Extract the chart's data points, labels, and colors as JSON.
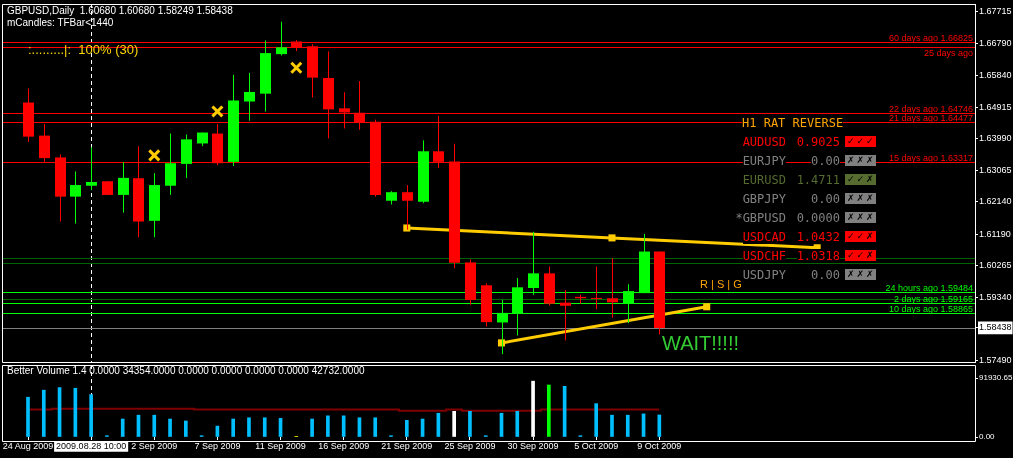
{
  "chart_data": [
    {
      "type": "candlestick",
      "title": "GBPUSD,Daily  1.60680 1.60680 1.58249 1.58438",
      "subtitle": "mCandles: TFBar<1440",
      "categories": [
        "24 Aug 2009",
        null,
        null,
        null,
        "2009.08.28 10:00",
        null,
        null,
        null,
        "2 Sep 2009",
        null,
        null,
        null,
        "7 Sep 2009",
        null,
        null,
        null,
        "11 Sep 2009",
        null,
        null,
        null,
        "16 Sep 2009",
        null,
        null,
        null,
        "21 Sep 2009",
        null,
        null,
        null,
        "25 Sep 2009",
        null,
        null,
        null,
        "30 Sep 2009",
        null,
        null,
        null,
        "5 Oct 2009",
        null,
        null,
        null,
        "9 Oct 2009",
        null,
        null,
        null,
        null,
        null,
        null,
        null,
        null,
        null,
        null,
        null,
        null,
        null,
        null,
        null,
        null,
        null,
        null,
        null,
        null
      ],
      "ohlc": [
        [
          1.6505,
          1.6546,
          1.6389,
          1.6405
        ],
        [
          1.6408,
          1.6442,
          1.6328,
          1.6342
        ],
        [
          1.6344,
          1.6353,
          1.6156,
          1.6229
        ],
        [
          1.6229,
          1.6303,
          1.615,
          1.6263
        ],
        [
          1.6261,
          1.6374,
          1.6248,
          1.6272
        ],
        [
          1.6274,
          1.6274,
          1.6234,
          1.6234
        ],
        [
          1.6234,
          1.633,
          1.6182,
          1.6284
        ],
        [
          1.6283,
          1.6377,
          1.611,
          1.6156
        ],
        [
          1.6158,
          1.6298,
          1.611,
          1.6263
        ],
        [
          1.6261,
          1.6414,
          1.6234,
          1.6327
        ],
        [
          1.6325,
          1.6411,
          1.6284,
          1.6397
        ],
        [
          1.6385,
          1.6417,
          1.6377,
          1.6417
        ],
        [
          1.6414,
          1.6442,
          1.6321,
          1.6327
        ],
        [
          1.6331,
          1.6586,
          1.6319,
          1.6511
        ],
        [
          1.6508,
          1.6592,
          1.6452,
          1.6536
        ],
        [
          1.6531,
          1.6687,
          1.6479,
          1.665
        ],
        [
          1.6647,
          1.6742,
          1.6643,
          1.6667
        ],
        [
          1.6684,
          1.6688,
          1.6656,
          1.6665
        ],
        [
          1.667,
          1.6676,
          1.652,
          1.6578
        ],
        [
          1.6577,
          1.6655,
          1.64,
          1.6485
        ],
        [
          1.6488,
          1.6535,
          1.6429,
          1.6476
        ],
        [
          1.6475,
          1.6568,
          1.6425,
          1.6447
        ],
        [
          1.6449,
          1.6455,
          1.6229,
          1.6234
        ],
        [
          1.6217,
          1.6245,
          1.6206,
          1.6242
        ],
        [
          1.6242,
          1.6263,
          1.6132,
          1.6217
        ],
        [
          1.6214,
          1.6394,
          1.621,
          1.6362
        ],
        [
          1.6362,
          1.6466,
          1.6313,
          1.6331
        ],
        [
          1.6332,
          1.6384,
          1.6019,
          1.6035
        ],
        [
          1.6036,
          1.6045,
          1.5912,
          1.5926
        ],
        [
          1.5969,
          1.5975,
          1.5848,
          1.5861
        ],
        [
          1.586,
          1.5926,
          1.5767,
          1.5888
        ],
        [
          1.5886,
          1.599,
          1.5822,
          1.5963
        ],
        [
          1.5961,
          1.6126,
          1.5941,
          1.6004
        ],
        [
          1.6004,
          1.6024,
          1.5909,
          1.5915
        ],
        [
          1.5918,
          1.5955,
          1.5807,
          1.5909
        ],
        [
          1.5935,
          1.5941,
          1.5915,
          1.5931
        ],
        [
          1.5932,
          1.6024,
          1.5899,
          1.5929
        ],
        [
          1.5931,
          1.6048,
          1.5874,
          1.5919
        ],
        [
          1.5915,
          1.5972,
          1.5858,
          1.5952
        ],
        [
          1.5946,
          1.612,
          1.5946,
          1.6068
        ],
        [
          1.6068,
          1.6068,
          1.58249,
          1.58438
        ],
        null,
        null,
        null,
        null,
        null,
        null,
        null,
        null,
        null,
        null,
        null,
        null,
        null,
        null,
        null,
        null,
        null,
        null,
        null,
        null
      ],
      "colors": [
        "#ff0000",
        "#ff0000",
        "#ff0000",
        "#00ff00",
        "#00ff00",
        "#ff0000",
        "#00ff00",
        "#ff0000",
        "#00ff00",
        "#00ff00",
        "#00ff00",
        "#00ff00",
        "#ff0000",
        "#00ff00",
        "#00ff00",
        "#00ff00",
        "#00ff00",
        "#ff0000",
        "#ff0000",
        "#ff0000",
        "#ff0000",
        "#ff0000",
        "#ff0000",
        "#00ff00",
        "#ff0000",
        "#00ff00",
        "#ff0000",
        "#ff0000",
        "#ff0000",
        "#ff0000",
        "#00ff00",
        "#00ff00",
        "#00ff00",
        "#ff0000",
        "#ff0000",
        "#ff0000",
        "#ff0000",
        "#ff0000",
        "#00ff00",
        "#00ff00",
        "#ff0000",
        null,
        null,
        null,
        null,
        null,
        null,
        null,
        null,
        null,
        null,
        null,
        null,
        null,
        null,
        null,
        null,
        null,
        null,
        null,
        null
      ],
      "ylim": [
        1.5744,
        1.6794
      ],
      "yticks": [
        1.67715,
        {
          "value": 1.6679,
          "label": "1.66790"
        },
        {
          "value": 1.6584,
          "label": "1.65840"
        },
        1.64915,
        {
          "value": 1.6399,
          "label": "1.63990"
        },
        1.63065,
        {
          "value": 1.6214,
          "label": "1.62140"
        },
        {
          "value": 1.6119,
          "label": "1.61190"
        },
        1.60265,
        {
          "value": 1.5934,
          "label": "1.59340"
        },
        1.58438,
        {
          "value": 1.5749,
          "label": "1.57490"
        }
      ],
      "tick_labels": "y",
      "ref_lines": [
        {
          "axis": "x",
          "value": "2009.08.28 10:00",
          "color": "#ffffff",
          "line_style": "dashed"
        },
        {
          "axis": "y",
          "value": 1.66825,
          "label": "60 days ago 1.66825",
          "color": "#ff0000"
        },
        {
          "axis": "y",
          "value": 1.6669,
          "label": "25 days ago",
          "color": "#ff0000"
        },
        {
          "axis": "y",
          "value": 1.64746,
          "label": "22 days ago 1.64746",
          "color": "#ff0000"
        },
        {
          "axis": "y",
          "value": 1.64477,
          "label": "21 days ago 1.64477",
          "color": "#ff0000"
        },
        {
          "axis": "y",
          "value": 1.63317,
          "label": "15 days ago 1.63317",
          "color": "#ff0000"
        },
        {
          "axis": "y",
          "value": 1.6048,
          "color": "#006400"
        },
        {
          "axis": "y",
          "value": 1.6035,
          "color": "#006400"
        },
        {
          "axis": "y",
          "value": 1.593,
          "color": "#006400"
        },
        {
          "axis": "y",
          "value": 1.59484,
          "label": "24 hours ago 1.59484",
          "color": "#00ff00"
        },
        {
          "axis": "y",
          "value": 1.59165,
          "label": "2 days ago 1.59165",
          "color": "#00ff00"
        },
        {
          "axis": "y",
          "value": 1.58865,
          "label": "10 days ago 1.58865",
          "color": "#00ff00"
        },
        {
          "axis": "y",
          "value": 1.58438,
          "color": "#808080"
        }
      ],
      "series": [
        {
          "type": "line",
          "color": "#ffcc00",
          "marker": "square",
          "values": [
            null,
            null,
            null,
            null,
            null,
            null,
            null,
            null,
            null,
            null,
            null,
            null,
            null,
            null,
            null,
            null,
            null,
            null,
            null,
            null,
            null,
            null,
            null,
            null,
            1.6137,
            null,
            null,
            null,
            null,
            null,
            null,
            null,
            null,
            null,
            null,
            null,
            null,
            1.6108,
            null,
            null,
            null,
            null,
            null,
            null,
            null,
            null,
            null,
            null,
            null,
            null,
            1.6079,
            null,
            null,
            null,
            null,
            null,
            null,
            null,
            null,
            null,
            null
          ]
        },
        {
          "type": "line",
          "color": "#ffcc00",
          "marker": "square",
          "values": [
            null,
            null,
            null,
            null,
            null,
            null,
            null,
            null,
            null,
            null,
            null,
            null,
            null,
            null,
            null,
            null,
            null,
            null,
            null,
            null,
            null,
            null,
            null,
            null,
            null,
            null,
            null,
            null,
            null,
            null,
            1.58,
            null,
            null,
            null,
            null,
            null,
            null,
            null,
            null,
            null,
            null,
            null,
            null,
            1.5906,
            null,
            null,
            null,
            null,
            null,
            null,
            null,
            null,
            null,
            null,
            null,
            null,
            null,
            null,
            null,
            null,
            null
          ]
        },
        {
          "type": "scatter",
          "color": "#ffcc00",
          "marker": "cross",
          "values": [
            null,
            null,
            null,
            null,
            null,
            null,
            null,
            null,
            1.635,
            null,
            null,
            null,
            1.6479,
            null,
            null,
            null,
            null,
            1.6607,
            null,
            null,
            null,
            null,
            null,
            null,
            null,
            null,
            null,
            null,
            null,
            null,
            null,
            null,
            null,
            null,
            null,
            null,
            null,
            null,
            null,
            null,
            null,
            null,
            null,
            null,
            null,
            null,
            null,
            null,
            null,
            null,
            null,
            null,
            null,
            null,
            null,
            null,
            null,
            null,
            null,
            null,
            null
          ]
        }
      ],
      "annotations": [
        ":.........|:  100% (30)",
        "WAIT!!!!!",
        "R | S | G"
      ]
    },
    {
      "type": "other",
      "title": "H1 RAT REVERSE",
      "categories": [
        "AUDUSD",
        "EURJPY",
        "EURUSD",
        "GBPJPY",
        "*GBPUSD",
        "USDCAD",
        "USDCHF",
        "USDJPY"
      ],
      "value_labels": [
        "0.9025",
        "0.00",
        "1.4711",
        "0.00",
        "0.0000",
        "1.0432",
        "1.0318",
        "0.00"
      ],
      "colors": [
        "#ff0000",
        "#808080",
        "#556b2f",
        "#808080",
        "#808080",
        "#ff0000",
        "#ff0000",
        "#808080"
      ],
      "annotations": [
        "✓✓✓",
        "✗✗✗",
        "✓✓✗",
        "✗✗✗",
        "✗✗✗",
        "✓✓✗",
        "✓✓✗",
        "✗✗✗"
      ]
    },
    {
      "type": "bar",
      "title": "Better Volume 1.4 0.0000 34354.0000 0.0000 0.0000 0.0000 0.0000 42732.0000",
      "categories": [
        "24 Aug 2009",
        null,
        null,
        null,
        "2009.08.28 10:00",
        null,
        null,
        null,
        "2 Sep 2009",
        null,
        null,
        null,
        "7 Sep 2009",
        null,
        null,
        null,
        "11 Sep 2009",
        null,
        null,
        null,
        "16 Sep 2009",
        null,
        null,
        null,
        "21 Sep 2009",
        null,
        null,
        null,
        "25 Sep 2009",
        null,
        null,
        null,
        "30 Sep 2009",
        null,
        null,
        null,
        "5 Oct 2009",
        null,
        null,
        null,
        "9 Oct 2009",
        null,
        null,
        null,
        null,
        null,
        null,
        null,
        null,
        null,
        null,
        null,
        null,
        null,
        null,
        null,
        null,
        null,
        null,
        null,
        null
      ],
      "series": [
        {
          "type": "bar",
          "colors": [
            "#00bfff",
            "#00bfff",
            "#00bfff",
            "#00bfff",
            "#00bfff",
            "#00bfff",
            "#00bfff",
            "#00bfff",
            "#00bfff",
            "#00bfff",
            "#00bfff",
            "#00bfff",
            "#00bfff",
            "#00bfff",
            "#00bfff",
            "#00bfff",
            "#00bfff",
            "#ffff00",
            "#00bfff",
            "#00bfff",
            "#00bfff",
            "#00bfff",
            "#00bfff",
            "#00bfff",
            "#00bfff",
            "#00bfff",
            "#00bfff",
            "#ffffff",
            "#00bfff",
            "#00bfff",
            "#00bfff",
            "#00bfff",
            "#ffffff",
            "#00ff00",
            "#00bfff",
            "#00bfff",
            "#00bfff",
            "#00bfff",
            "#00bfff",
            "#00bfff",
            "#00bfff",
            null,
            null,
            null,
            null,
            null,
            null,
            null,
            null,
            null,
            null,
            null,
            null,
            null,
            null,
            null,
            null,
            null,
            null,
            null,
            null
          ],
          "values": [
            62000,
            73000,
            77000,
            76000,
            66000,
            2000,
            28000,
            34000,
            34000,
            28000,
            25000,
            2000,
            17000,
            28000,
            30000,
            30000,
            29000,
            1000,
            28000,
            33000,
            33000,
            30000,
            30000,
            2000,
            26000,
            28000,
            37000,
            40000,
            40000,
            2000,
            37000,
            40000,
            87000,
            81000,
            79000,
            2000,
            52000,
            34000,
            34000,
            36000,
            34354,
            null,
            null,
            null,
            null,
            null,
            null,
            null,
            null,
            null,
            null,
            null,
            null,
            null,
            null,
            null,
            null,
            null,
            null,
            null,
            null
          ]
        },
        {
          "type": "step",
          "color": "#800000",
          "values": [
            43000,
            43000,
            44000,
            44000,
            44000,
            44000,
            44000,
            44000,
            44000,
            44000,
            44000,
            43000,
            43000,
            43000,
            43000,
            43000,
            43000,
            43000,
            43000,
            43000,
            43000,
            43000,
            43000,
            43000,
            41000,
            41000,
            41000,
            43000,
            41000,
            41000,
            41000,
            41000,
            41000,
            42732,
            42732,
            42732,
            42732,
            42732,
            42732,
            42732,
            42732,
            null,
            null,
            null,
            null,
            null,
            null,
            null,
            null,
            null,
            null,
            null,
            null,
            null,
            null,
            null,
            null,
            null,
            null,
            null,
            null
          ]
        }
      ],
      "ylim": [
        0,
        91930.65
      ],
      "yticks": [
        {
          "value": 0,
          "label": "0.00"
        },
        {
          "value": 91930.65,
          "label": "91930.65"
        }
      ],
      "ref_lines": [
        {
          "axis": "x",
          "value": "2009.08.28 10:00",
          "color": "#ffffff",
          "line_style": "dashed"
        }
      ]
    }
  ]
}
